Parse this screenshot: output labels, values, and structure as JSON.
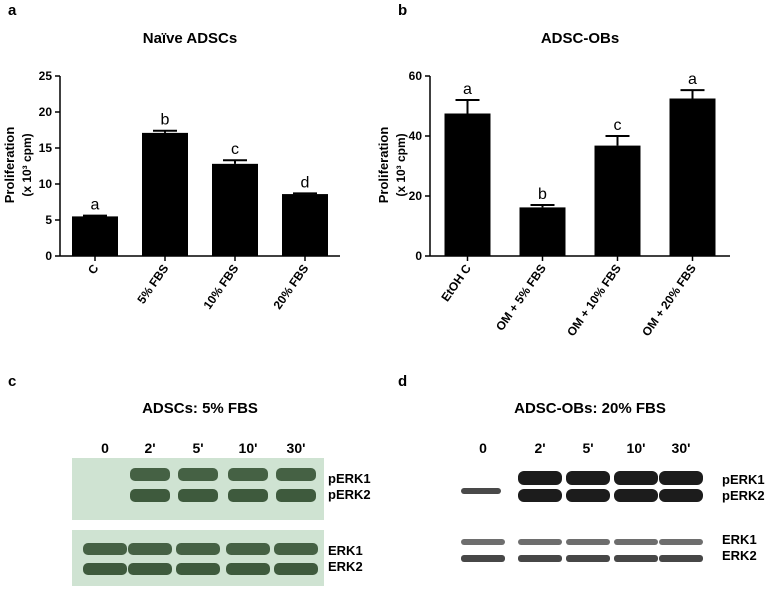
{
  "panels": {
    "a": {
      "letter": "a",
      "title": "Naïve ADSCs",
      "ylabel_main": "Proliferation",
      "ylabel_unit": "(x 10³ cpm)"
    },
    "b": {
      "letter": "b",
      "title": "ADSC-OBs",
      "ylabel_main": "Proliferation",
      "ylabel_unit": "(x 10³ cpm)"
    },
    "c": {
      "letter": "c",
      "title": "ADSCs: 5% FBS",
      "lanes": [
        "0",
        "2'",
        "5'",
        "10'",
        "30'"
      ],
      "band_labels": [
        "pERK1",
        "pERK2",
        "ERK1",
        "ERK2"
      ]
    },
    "d": {
      "letter": "d",
      "title": "ADSC-OBs: 20% FBS",
      "lanes": [
        "0",
        "2'",
        "5'",
        "10'",
        "30'"
      ],
      "band_labels": [
        "pERK1",
        "pERK2",
        "ERK1",
        "ERK2"
      ]
    }
  },
  "chart_data": [
    {
      "type": "bar",
      "title": "Naïve ADSCs",
      "ylabel": "Proliferation (x 10³ cpm)",
      "categories": [
        "C",
        "5% FBS",
        "10% FBS",
        "20% FBS"
      ],
      "values": [
        5.5,
        17.1,
        12.8,
        8.6
      ],
      "errors": [
        0.1,
        0.3,
        0.5,
        0.1
      ],
      "sig_letters": [
        "a",
        "b",
        "c",
        "d"
      ],
      "ylim": [
        0,
        25
      ],
      "yticks": [
        0,
        5,
        10,
        15,
        20,
        25
      ],
      "bar_color": "#000000"
    },
    {
      "type": "bar",
      "title": "ADSC-OBs",
      "ylabel": "Proliferation (x 10³ cpm)",
      "categories": [
        "EtOH C",
        "OM + 5% FBS",
        "OM + 10% FBS",
        "OM + 20% FBS"
      ],
      "values": [
        47.5,
        16.2,
        36.8,
        52.5
      ],
      "errors": [
        4.5,
        0.8,
        3.2,
        2.8
      ],
      "sig_letters": [
        "a",
        "b",
        "c",
        "a"
      ],
      "ylim": [
        0,
        60
      ],
      "yticks": [
        0,
        20,
        40,
        60
      ],
      "bar_color": "#000000"
    }
  ],
  "blot_colors": {
    "c_background": "#cfe3d2",
    "c_band": "#2d4a2c",
    "d_background": "#ffffff",
    "d_band": "#1c1c1c"
  }
}
